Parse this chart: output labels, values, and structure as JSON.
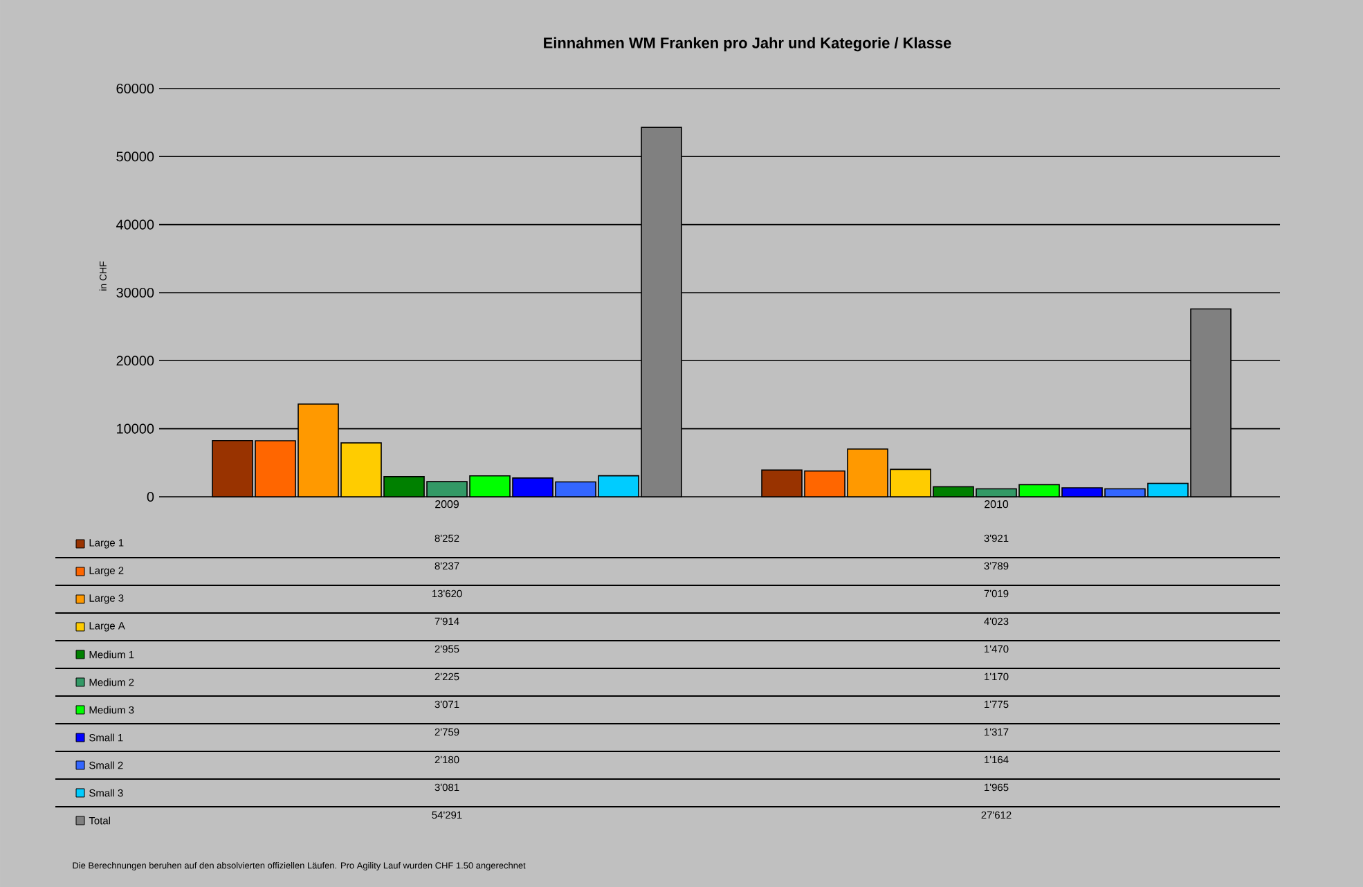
{
  "chart_data": {
    "type": "bar",
    "title": "Einnahmen WM Franken pro Jahr und Kategorie / Klasse",
    "ylabel": "in CHF",
    "categories": [
      "2009",
      "2010"
    ],
    "series": [
      {
        "name": "Large 1",
        "color": "#993300",
        "values": [
          8252,
          3921
        ],
        "value_labels": [
          "8'252",
          "3'921"
        ]
      },
      {
        "name": "Large 2",
        "color": "#ff6600",
        "values": [
          8237,
          3789
        ],
        "value_labels": [
          "8'237",
          "3'789"
        ]
      },
      {
        "name": "Large 3",
        "color": "#ff9900",
        "values": [
          13620,
          7019
        ],
        "value_labels": [
          "13'620",
          "7'019"
        ]
      },
      {
        "name": "Large A",
        "color": "#ffcc00",
        "values": [
          7914,
          4023
        ],
        "value_labels": [
          "7'914",
          "4'023"
        ]
      },
      {
        "name": "Medium 1",
        "color": "#008000",
        "values": [
          2955,
          1470
        ],
        "value_labels": [
          "2'955",
          "1'470"
        ]
      },
      {
        "name": "Medium 2",
        "color": "#339966",
        "values": [
          2225,
          1170
        ],
        "value_labels": [
          "2'225",
          "1'170"
        ]
      },
      {
        "name": "Medium 3",
        "color": "#00ff00",
        "values": [
          3071,
          1775
        ],
        "value_labels": [
          "3'071",
          "1'775"
        ]
      },
      {
        "name": "Small 1",
        "color": "#0000ff",
        "values": [
          2759,
          1317
        ],
        "value_labels": [
          "2'759",
          "1'317"
        ]
      },
      {
        "name": "Small 2",
        "color": "#3366ff",
        "values": [
          2180,
          1164
        ],
        "value_labels": [
          "2'180",
          "1'164"
        ]
      },
      {
        "name": "Small 3",
        "color": "#00ccff",
        "values": [
          3081,
          1965
        ],
        "value_labels": [
          "3'081",
          "1'965"
        ]
      },
      {
        "name": "Total",
        "color": "#808080",
        "values": [
          54291,
          27612
        ],
        "value_labels": [
          "54'291",
          "27'612"
        ]
      }
    ],
    "ylim": [
      0,
      60000
    ],
    "yticks": [
      0,
      10000,
      20000,
      30000,
      40000,
      50000,
      60000
    ],
    "grid": "y",
    "legend": "bottom left",
    "annotations": [
      "Die Berechnungen beruhen auf den absolvierten offiziellen Läufen. Pro Agility Lauf wurden CHF 1.50 angerechnet"
    ]
  }
}
